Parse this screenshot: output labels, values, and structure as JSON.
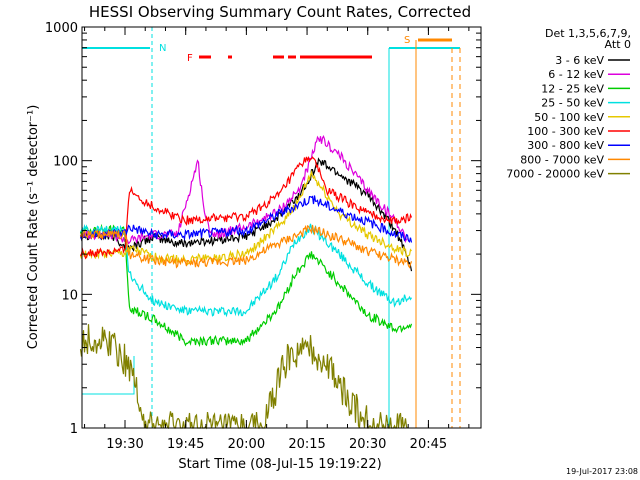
{
  "chart_data": {
    "type": "line",
    "title": "HESSI Observing Summary Count Rates, Corrected",
    "xlabel": "Start Time (08-Jul-15 19:19:22)",
    "ylabel": "Corrected Count Rate (s⁻¹ detector⁻¹)",
    "yscale": "log",
    "ylim": [
      1,
      1000
    ],
    "xlim": [
      "19:19:22",
      "20:58:00"
    ],
    "x_ticks": [
      "19:30",
      "19:45",
      "20:00",
      "20:15",
      "20:30",
      "20:45"
    ],
    "y_ticks": [
      "1",
      "10",
      "100",
      "1000"
    ],
    "legend": {
      "header": [
        "Det 1,3,5,6,7,9,",
        "Att 0"
      ],
      "placement": "right"
    },
    "series": [
      {
        "name": "3 - 6 keV",
        "color": "#000000",
        "x": [
          "19:19",
          "19:27",
          "19:31",
          "19:37",
          "19:43",
          "19:50",
          "20:00",
          "20:08",
          "20:13",
          "20:18",
          "20:23",
          "20:30",
          "20:37",
          "20:41"
        ],
        "values": [
          28,
          27,
          22,
          27,
          24,
          25,
          27,
          38,
          55,
          100,
          80,
          55,
          30,
          15
        ]
      },
      {
        "name": "6 - 12 keV",
        "color": "#dd00dd",
        "x": [
          "19:19",
          "19:27",
          "19:31",
          "19:37",
          "19:43",
          "19:48",
          "19:50",
          "19:52",
          "20:00",
          "20:08",
          "20:13",
          "20:18",
          "20:23",
          "20:30",
          "20:37",
          "20:40"
        ],
        "values": [
          28,
          28,
          25,
          28,
          28,
          100,
          35,
          28,
          32,
          42,
          60,
          150,
          110,
          60,
          35,
          25
        ]
      },
      {
        "name": "12 - 25 keV",
        "color": "#00cc00",
        "x": [
          "19:19",
          "19:30",
          "19:31",
          "19:37",
          "19:45",
          "20:00",
          "20:08",
          "20:12",
          "20:16",
          "20:23",
          "20:30",
          "20:37",
          "20:41"
        ],
        "values": [
          30,
          30,
          8,
          6.5,
          4.5,
          4.5,
          8,
          14,
          20,
          12,
          7,
          5.5,
          6
        ]
      },
      {
        "name": "25 - 50 keV",
        "color": "#00e0e0",
        "x": [
          "19:19",
          "19:30",
          "19:31",
          "19:37",
          "19:45",
          "20:00",
          "20:08",
          "20:12",
          "20:16",
          "20:23",
          "20:30",
          "20:37",
          "20:41"
        ],
        "values": [
          30,
          30,
          14,
          9,
          7.5,
          7.5,
          14,
          25,
          32,
          20,
          12,
          8.5,
          10
        ]
      },
      {
        "name": "50 - 100 keV",
        "color": "#e6c800",
        "x": [
          "19:19",
          "19:30",
          "19:31",
          "19:37",
          "19:45",
          "20:00",
          "20:08",
          "20:13",
          "20:16",
          "20:23",
          "20:30",
          "20:37",
          "20:41"
        ],
        "values": [
          20,
          20,
          22,
          19,
          18,
          20,
          32,
          50,
          80,
          40,
          28,
          22,
          20
        ]
      },
      {
        "name": "100 - 300 keV",
        "color": "#ff0000",
        "x": [
          "19:19",
          "19:30",
          "19:31",
          "19:37",
          "19:45",
          "20:00",
          "20:08",
          "20:13",
          "20:16",
          "20:20",
          "20:30",
          "20:37",
          "20:41"
        ],
        "values": [
          20,
          21,
          60,
          45,
          36,
          38,
          55,
          90,
          110,
          60,
          40,
          35,
          38
        ]
      },
      {
        "name": "300 - 800 keV",
        "color": "#0000ff",
        "x": [
          "19:19",
          "19:30",
          "19:31",
          "19:37",
          "19:45",
          "20:00",
          "20:08",
          "20:13",
          "20:16",
          "20:23",
          "20:30",
          "20:37",
          "20:41"
        ],
        "values": [
          28,
          29,
          32,
          28,
          28,
          30,
          40,
          47,
          52,
          42,
          35,
          28,
          26
        ]
      },
      {
        "name": "800 - 7000 keV",
        "color": "#ff8800",
        "x": [
          "19:19",
          "19:30",
          "19:31",
          "19:37",
          "19:45",
          "20:00",
          "20:08",
          "20:13",
          "20:16",
          "20:23",
          "20:30",
          "20:37",
          "20:41"
        ],
        "values": [
          28,
          28,
          20,
          18,
          17,
          18,
          24,
          28,
          31,
          26,
          21,
          18,
          17
        ]
      },
      {
        "name": "7000 - 20000 keV",
        "color": "#808000",
        "x": [
          "19:19",
          "19:27",
          "19:29",
          "19:31",
          "19:33",
          "19:35",
          "19:45",
          "20:04",
          "20:10",
          "20:16",
          "20:20",
          "20:26",
          "20:31",
          "20:40"
        ],
        "values": [
          4.5,
          4.5,
          3.5,
          3,
          2,
          1,
          1,
          1,
          3.3,
          3.8,
          3,
          1.5,
          1,
          1
        ]
      }
    ],
    "annotations": {
      "flag_N": "N",
      "flag_F": "F",
      "flag_S": "S"
    },
    "footer_date": "19-Jul-2017 23:08"
  }
}
